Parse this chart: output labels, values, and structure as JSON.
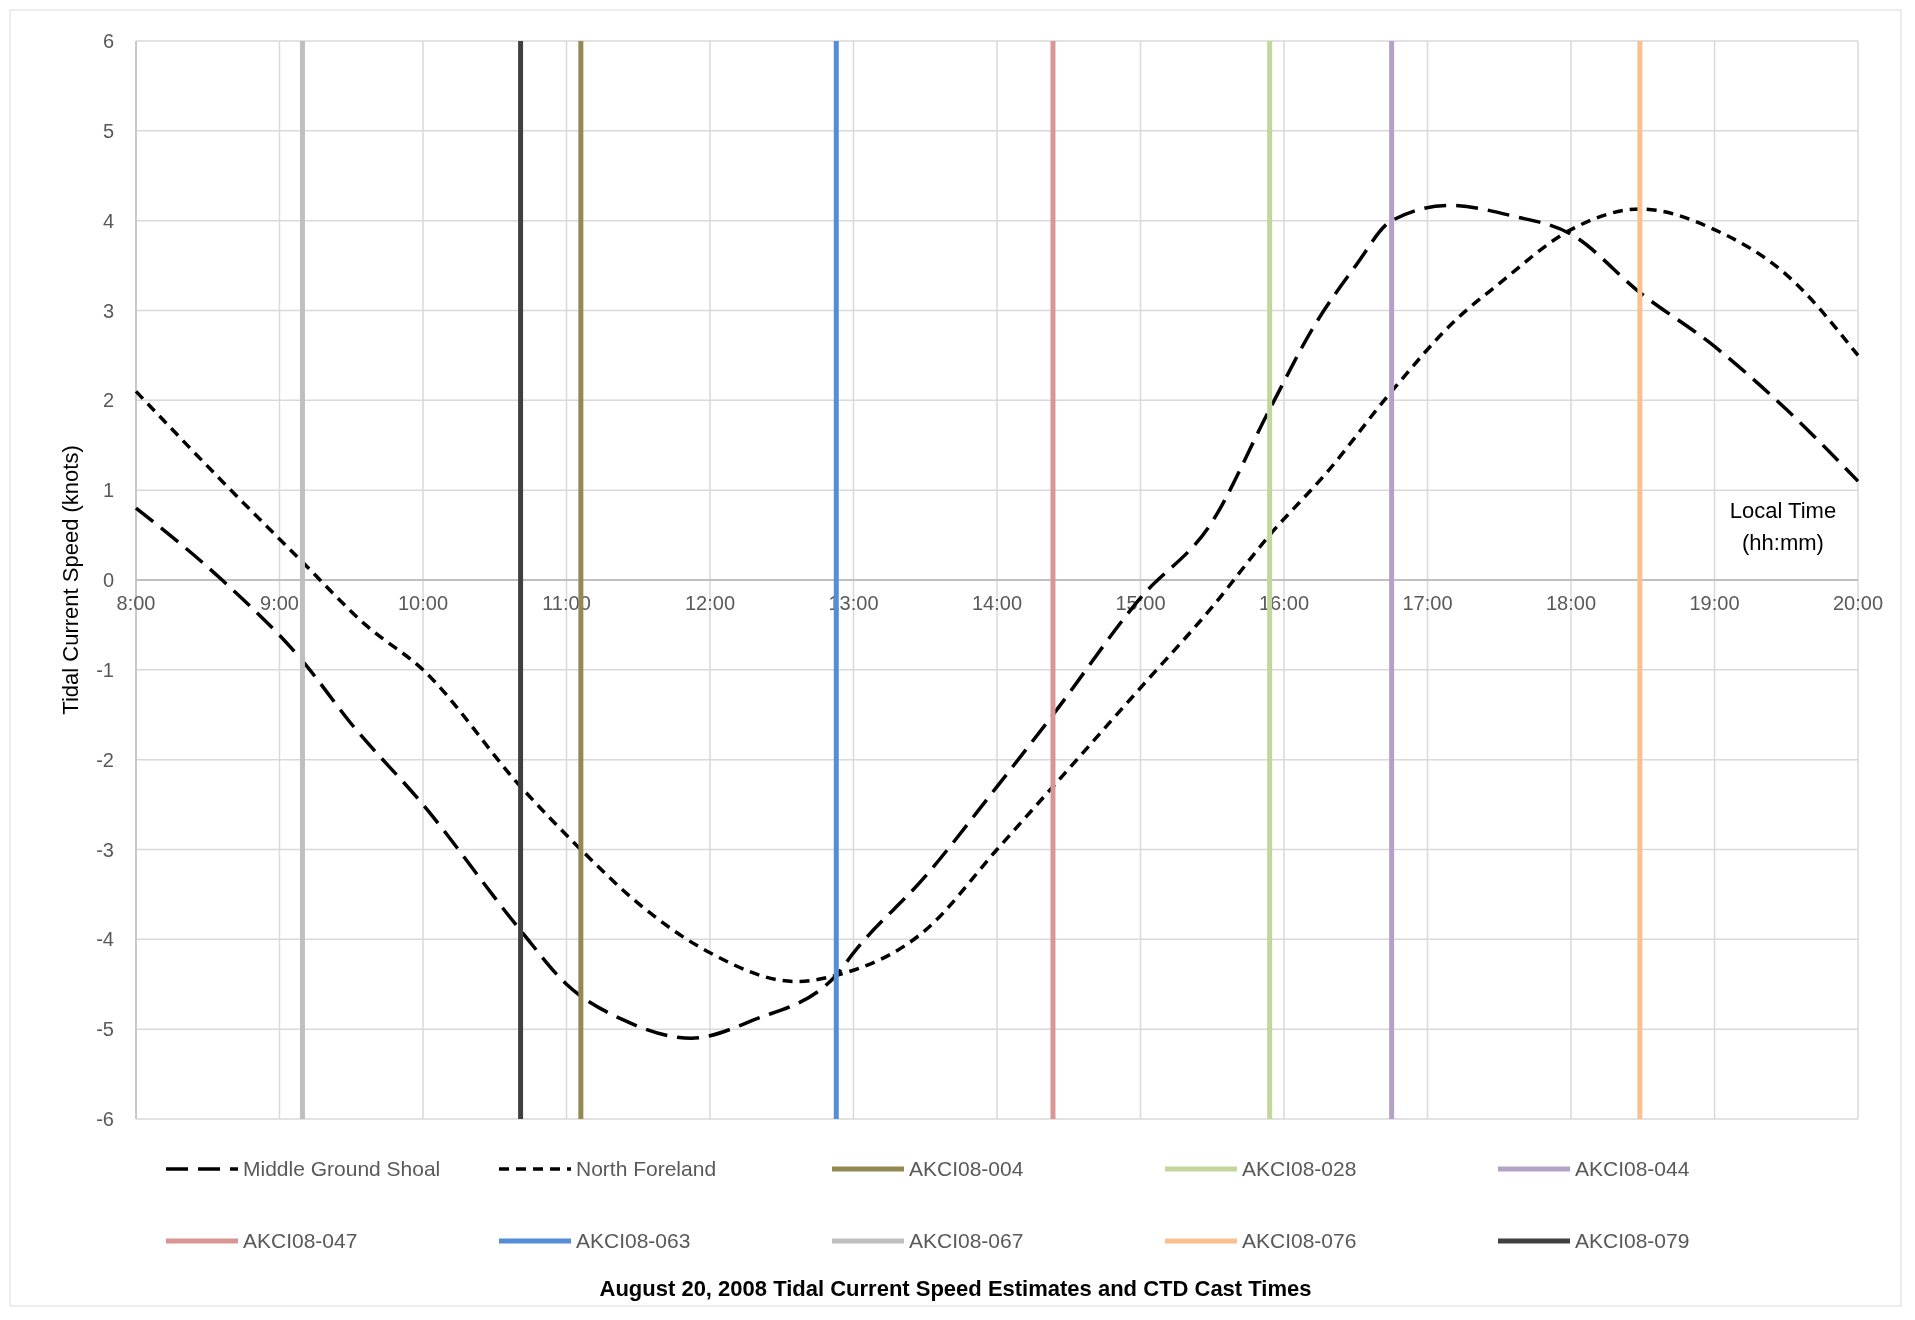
{
  "chart_data": {
    "type": "line",
    "title": "August 20, 2008 Tidal Current Speed Estimates and CTD Cast Times",
    "xlabel": "Local Time (hh:mm)",
    "ylabel": "Tidal Current Speed (knots)",
    "xlim": [
      8,
      20
    ],
    "xticks": [
      {
        "value": 8,
        "label": "8:00"
      },
      {
        "value": 9,
        "label": "9:00"
      },
      {
        "value": 10,
        "label": "10:00"
      },
      {
        "value": 11,
        "label": "11:00"
      },
      {
        "value": 12,
        "label": "12:00"
      },
      {
        "value": 13,
        "label": "13:00"
      },
      {
        "value": 14,
        "label": "14:00"
      },
      {
        "value": 15,
        "label": "15:00"
      },
      {
        "value": 16,
        "label": "16:00"
      },
      {
        "value": 17,
        "label": "17:00"
      },
      {
        "value": 18,
        "label": "18:00"
      },
      {
        "value": 19,
        "label": "19:00"
      },
      {
        "value": 20,
        "label": "20:00"
      }
    ],
    "ylim": [
      -6,
      6
    ],
    "yticks": [
      -6,
      -5,
      -4,
      -3,
      -2,
      -1,
      0,
      1,
      2,
      3,
      4,
      5,
      6
    ],
    "grid": true,
    "legend": "bottom",
    "series": [
      {
        "name": "Middle Ground Shoal",
        "color": "#000000",
        "line_style": "dashed",
        "x": [
          8,
          8.6,
          9.16,
          9.5,
          10,
          10.68,
          11,
          11.4,
          11.87,
          12.3,
          12.88,
          13,
          13.5,
          14,
          14.39,
          15,
          15.5,
          15.9,
          16.2,
          16.5,
          16.75,
          17.15,
          17.6,
          18,
          18.48,
          19,
          19.5,
          20
        ],
        "values": [
          0.8,
          0,
          -0.9,
          -1.6,
          -2.5,
          -3.9,
          -4.5,
          -4.9,
          -5.1,
          -4.9,
          -4.4,
          -4.15,
          -3.3,
          -2.3,
          -1.5,
          -0.2,
          0.65,
          1.9,
          2.8,
          3.5,
          4,
          4.17,
          4.05,
          3.85,
          3.2,
          2.6,
          1.9,
          1.1
        ]
      },
      {
        "name": "North Foreland",
        "color": "#000000",
        "line_style": "dashed",
        "x": [
          8,
          8.6,
          9.16,
          9.6,
          10,
          10.68,
          11.1,
          11.5,
          12,
          12.6,
          12.88,
          13.5,
          14,
          14.39,
          15,
          15.5,
          15.9,
          16.3,
          16.75,
          17.2,
          17.5,
          18,
          18.48,
          19,
          19.5,
          20
        ],
        "values": [
          2.1,
          1.1,
          0.2,
          -0.5,
          -1,
          -2.3,
          -3,
          -3.6,
          -4.15,
          -4.47,
          -4.4,
          -3.9,
          -3,
          -2.3,
          -1.2,
          -0.3,
          0.5,
          1.2,
          2.1,
          2.9,
          3.3,
          3.9,
          4.13,
          3.9,
          3.4,
          2.5
        ]
      },
      {
        "name": "AKCI08-004",
        "color": "#938953",
        "x": [
          11.1,
          11.1
        ],
        "values": [
          -6,
          6
        ]
      },
      {
        "name": "AKCI08-028",
        "color": "#c3d69b",
        "x": [
          15.9,
          15.9
        ],
        "values": [
          -6,
          6
        ]
      },
      {
        "name": "AKCI08-044",
        "color": "#b3a2c7",
        "x": [
          16.75,
          16.75
        ],
        "values": [
          -6,
          6
        ]
      },
      {
        "name": "AKCI08-047",
        "color": "#d99694",
        "x": [
          14.39,
          14.39
        ],
        "values": [
          -6,
          6
        ]
      },
      {
        "name": "AKCI08-063",
        "color": "#558ed5",
        "x": [
          12.88,
          12.88
        ],
        "values": [
          -6,
          6
        ]
      },
      {
        "name": "AKCI08-067",
        "color": "#bfbfbf",
        "x": [
          9.16,
          9.16
        ],
        "values": [
          -6,
          6
        ]
      },
      {
        "name": "AKCI08-076",
        "color": "#fac090",
        "x": [
          18.48,
          18.48
        ],
        "values": [
          -6,
          6
        ]
      },
      {
        "name": "AKCI08-079",
        "color": "#404040",
        "x": [
          10.68,
          10.68
        ],
        "values": [
          -6,
          6
        ]
      }
    ]
  }
}
